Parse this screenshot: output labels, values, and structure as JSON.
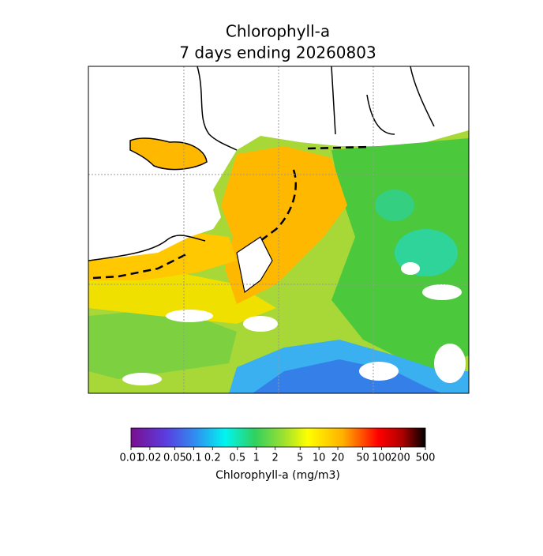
{
  "map": {
    "title": "Chlorophyll-a",
    "subtitle": "7 days ending 20260803"
  },
  "colorbar": {
    "label": "Chlorophyll-a (mg/m3)",
    "scale": "log",
    "lim": [
      0.01,
      500
    ],
    "ticks": [
      0.01,
      0.02,
      0.05,
      0.1,
      0.2,
      0.5,
      1,
      2,
      5,
      10,
      20,
      50,
      100,
      200,
      500
    ]
  }
}
